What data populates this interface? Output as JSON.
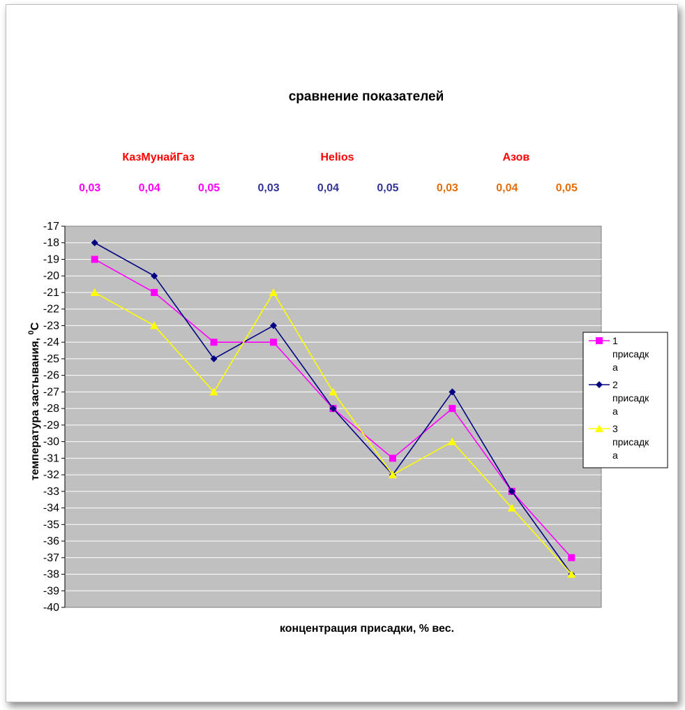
{
  "chart_data": {
    "type": "line",
    "title": "сравнение показателей",
    "xlabel": "концентрация присадки, % вес.",
    "ylabel": "температура застывания, 0C",
    "ylabel_parts": {
      "main": "температура застывания, ",
      "sup": "0",
      "unit": "C"
    },
    "ylim": [
      -40,
      -17
    ],
    "ytick_step": 1,
    "grid": true,
    "legend_position": "right",
    "groups": [
      {
        "label": "КазМунайГаз",
        "color": "#ff0000"
      },
      {
        "label": "Helios",
        "color": "#ff0000"
      },
      {
        "label": "Азов",
        "color": "#ff0000"
      }
    ],
    "categories": [
      "0,03",
      "0,04",
      "0,05",
      "0,03",
      "0,04",
      "0,05",
      "0,03",
      "0,04",
      "0,05"
    ],
    "category_colors": [
      "#ff00ff",
      "#ff00ff",
      "#ff00ff",
      "#333399",
      "#333399",
      "#333399",
      "#e46c0a",
      "#e46c0a",
      "#e46c0a"
    ],
    "series": [
      {
        "name": "1 присадка",
        "legend_lines": [
          "1",
          "присадк",
          "а"
        ],
        "color": "#ff00ff",
        "marker": "square",
        "values": [
          -19,
          -21,
          -24,
          -24,
          -28,
          -31,
          -28,
          -33,
          -37
        ]
      },
      {
        "name": "2 присадка",
        "legend_lines": [
          "2",
          "присадк",
          "а"
        ],
        "color": "#000080",
        "marker": "diamond",
        "values": [
          -18,
          -20,
          -25,
          -23,
          -28,
          -32,
          -27,
          -33,
          -38
        ]
      },
      {
        "name": "3 присадка",
        "legend_lines": [
          "3",
          "присадк",
          "а"
        ],
        "color": "#ffff00",
        "marker": "triangle",
        "values": [
          -21,
          -23,
          -27,
          -21,
          -27,
          -32,
          -30,
          -34,
          -38
        ]
      }
    ]
  }
}
